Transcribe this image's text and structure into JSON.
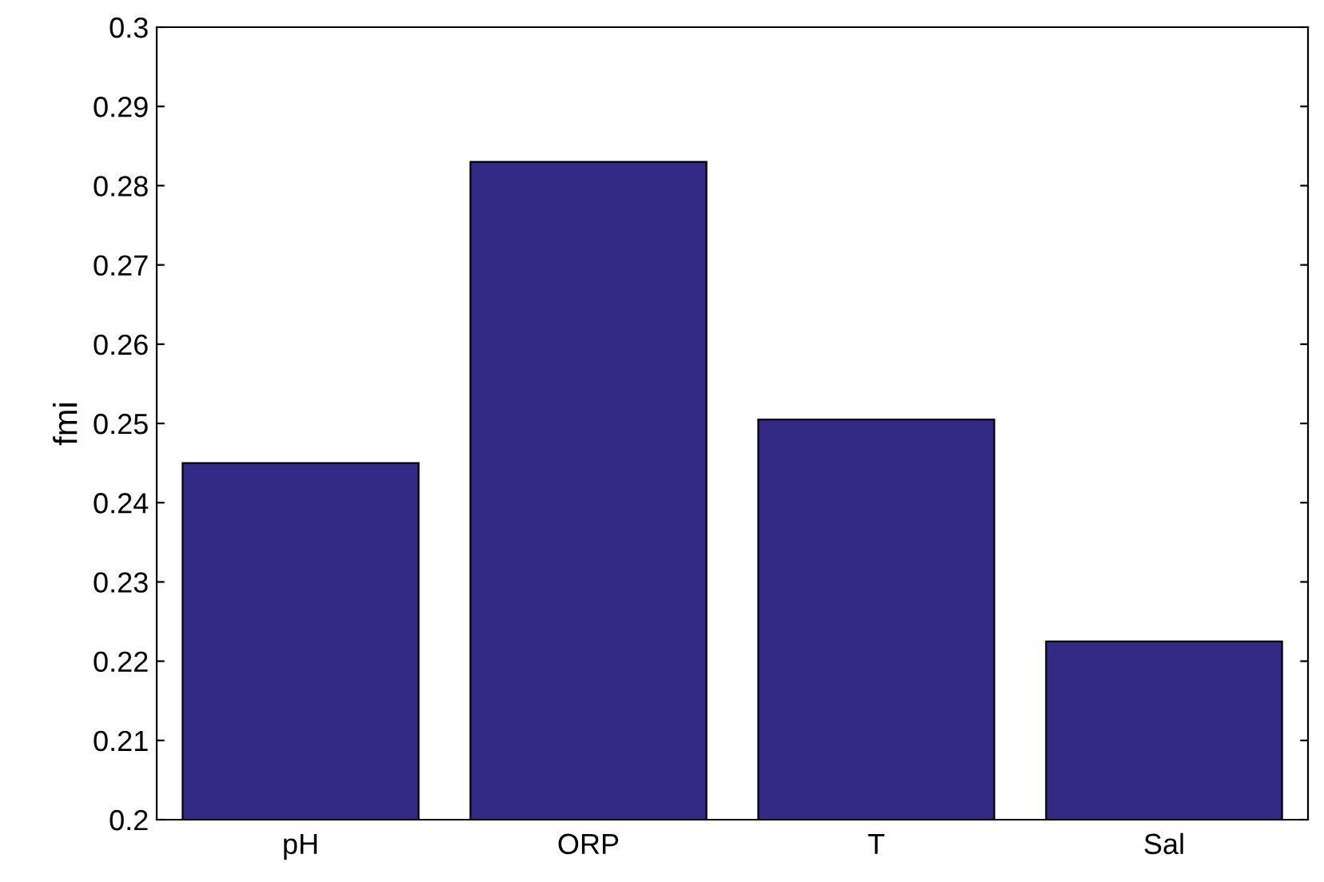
{
  "chart_data": {
    "type": "bar",
    "ylabel": "fmi",
    "categories": [
      "pH",
      "ORP",
      "T",
      "Sal"
    ],
    "values": [
      0.245,
      0.283,
      0.2505,
      0.2225
    ],
    "color": "#332a85",
    "ylim": [
      0.2,
      0.3
    ],
    "yticks": [
      0.2,
      0.21,
      0.22,
      0.23,
      0.24,
      0.25,
      0.26,
      0.27,
      0.28,
      0.29,
      0.3
    ],
    "grid": false,
    "legend": false
  }
}
